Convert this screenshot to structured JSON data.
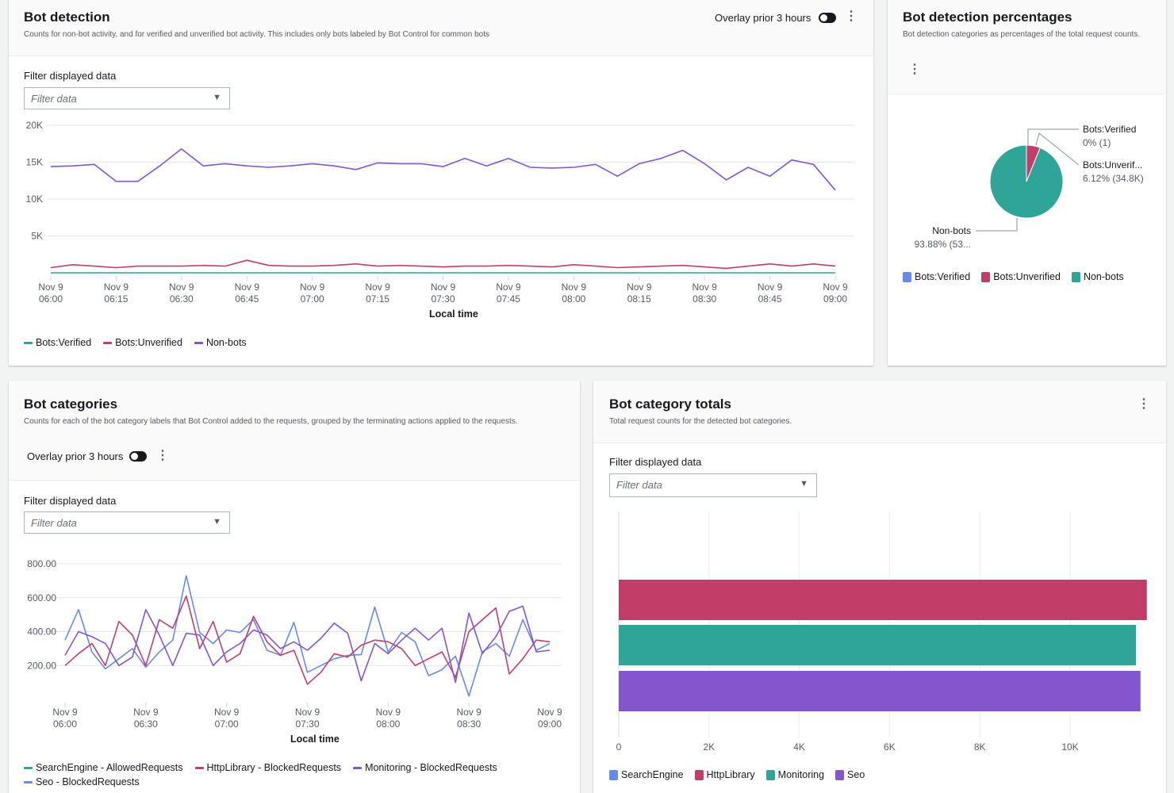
{
  "bot_detection": {
    "title": "Bot detection",
    "description": "Counts for non-bot activity, and for verified and unverified bot activity. This includes only bots labeled by Bot Control for common bots",
    "overlay_label": "Overlay prior 3 hours",
    "overlay_on": true,
    "filter_label": "Filter displayed data",
    "filter_placeholder": "Filter data",
    "x_label": "Local time",
    "legend": [
      "Bots:Verified",
      "Bots:Unverified",
      "Non-bots"
    ]
  },
  "bot_percentages": {
    "title": "Bot detection percentages",
    "description": "Bot detection categories as percentages of the total request counts.",
    "slice_labels": [
      {
        "name": "Bots:Verified",
        "value": "0% (1)"
      },
      {
        "name": "Bots:Unverif...",
        "value": "6.12% (34.8K)"
      },
      {
        "name": "Non-bots",
        "value": "93.88% (53..."
      }
    ],
    "legend": [
      "Bots:Verified",
      "Bots:Unverified",
      "Non-bots"
    ]
  },
  "bot_categories": {
    "title": "Bot categories",
    "description": "Counts for each of the bot category labels that Bot Control added to the requests, grouped by the terminating actions applied to the requests.",
    "overlay_label": "Overlay prior 3 hours",
    "overlay_on": true,
    "filter_label": "Filter displayed data",
    "filter_placeholder": "Filter data",
    "x_label": "Local time",
    "legend": [
      "SearchEngine - AllowedRequests",
      "HttpLibrary - BlockedRequests",
      "Monitoring - BlockedRequests",
      "Seo - BlockedRequests"
    ]
  },
  "bot_category_totals": {
    "title": "Bot category totals",
    "description": "Total request counts for the detected bot categories.",
    "filter_label": "Filter displayed data",
    "filter_placeholder": "Filter data",
    "legend": [
      "SearchEngine",
      "HttpLibrary",
      "Monitoring",
      "Seo"
    ]
  },
  "colors": {
    "blue": "#688ae8",
    "red": "#c33d69",
    "teal": "#2ea597",
    "purple": "#8456ce"
  },
  "chart_data": [
    {
      "type": "line",
      "x_ticks": [
        "Nov 9|06:00",
        "Nov 9|06:15",
        "Nov 9|06:30",
        "Nov 9|06:45",
        "Nov 9|07:00",
        "Nov 9|07:15",
        "Nov 9|07:30",
        "Nov 9|07:45",
        "Nov 9|08:00",
        "Nov 9|08:15",
        "Nov 9|08:30",
        "Nov 9|08:45",
        "Nov 9|09:00"
      ],
      "y_ticks": [
        "20K",
        "15K",
        "10K",
        "5K"
      ],
      "ylim": [
        0,
        20000
      ],
      "xlabel": "Local time",
      "x_interval_minutes": 5,
      "grid": true,
      "legend_position": "bottom-left",
      "series": [
        {
          "name": "Bots:Verified",
          "color": "#2ea597",
          "values": [
            0,
            0,
            0,
            0,
            0,
            0,
            0,
            0,
            0,
            0,
            0,
            0,
            0,
            0,
            0,
            0,
            0,
            0,
            0,
            0,
            0,
            0,
            0,
            0,
            0,
            0,
            0,
            0,
            0,
            0,
            0,
            0,
            0,
            0,
            0,
            0,
            0
          ]
        },
        {
          "name": "Bots:Unverified",
          "color": "#c33d69",
          "values": [
            700,
            1100,
            900,
            700,
            900,
            900,
            900,
            1000,
            900,
            1700,
            1000,
            900,
            900,
            1000,
            1200,
            900,
            1000,
            900,
            800,
            900,
            900,
            1000,
            900,
            800,
            1100,
            900,
            700,
            800,
            900,
            1000,
            800,
            600,
            900,
            1200,
            900,
            1200,
            900
          ]
        },
        {
          "name": "Non-bots",
          "color": "#8456ce",
          "values": [
            14400,
            14500,
            14700,
            12400,
            12400,
            14500,
            16800,
            14500,
            14800,
            14500,
            14300,
            14500,
            14800,
            14500,
            14000,
            14900,
            14800,
            14800,
            14400,
            15500,
            14500,
            15500,
            14300,
            14200,
            14300,
            14700,
            13100,
            14800,
            15500,
            16600,
            14800,
            12600,
            14300,
            13100,
            15300,
            14700,
            11200
          ]
        }
      ]
    },
    {
      "type": "pie",
      "slices": [
        {
          "name": "Bots:Verified",
          "percent": 0,
          "count": 1,
          "color": "#688ae8"
        },
        {
          "name": "Bots:Unverified",
          "percent": 6.12,
          "count": 34800,
          "color": "#c33d69"
        },
        {
          "name": "Non-bots",
          "percent": 93.88,
          "color": "#2ea597"
        }
      ],
      "legend_position": "bottom"
    },
    {
      "type": "line",
      "x_ticks": [
        "Nov 9|06:00",
        "Nov 9|06:30",
        "Nov 9|07:00",
        "Nov 9|07:30",
        "Nov 9|08:00",
        "Nov 9|08:30",
        "Nov 9|09:00"
      ],
      "y_ticks": [
        "800.00",
        "600.00",
        "400.00",
        "200.00"
      ],
      "ylim": [
        0,
        800
      ],
      "xlabel": "Local time",
      "x_interval_minutes": 5,
      "grid": true,
      "legend_position": "bottom-left",
      "series": [
        {
          "name": "Seo - BlockedRequests",
          "color": "#688ae8",
          "values": [
            350,
            530,
            280,
            180,
            240,
            300,
            190,
            280,
            350,
            730,
            395,
            330,
            410,
            395,
            470,
            290,
            260,
            455,
            160,
            200,
            240,
            260,
            265,
            545,
            280,
            395,
            340,
            140,
            175,
            255,
            20,
            280,
            330,
            255,
            470,
            290,
            330
          ]
        },
        {
          "name": "HttpLibrary - BlockedRequests",
          "color": "#c33d69",
          "values": [
            200,
            270,
            330,
            200,
            460,
            380,
            200,
            470,
            420,
            610,
            300,
            460,
            220,
            270,
            490,
            340,
            260,
            290,
            90,
            160,
            270,
            250,
            320,
            350,
            340,
            300,
            200,
            240,
            280,
            130,
            400,
            470,
            540,
            150,
            240,
            350,
            340
          ]
        },
        {
          "name": "Monitoring - BlockedRequests",
          "color": "#8456ce",
          "values": [
            260,
            400,
            370,
            330,
            200,
            250,
            530,
            380,
            200,
            390,
            380,
            200,
            280,
            330,
            410,
            380,
            300,
            340,
            290,
            360,
            450,
            390,
            110,
            330,
            270,
            350,
            420,
            350,
            420,
            100,
            510,
            270,
            370,
            520,
            550,
            280,
            290
          ]
        }
      ]
    },
    {
      "type": "bar",
      "orientation": "horizontal",
      "x_ticks": [
        "0",
        "2K",
        "4K",
        "6K",
        "8K",
        "10K"
      ],
      "xlim": [
        0,
        11800
      ],
      "grid": true,
      "legend_position": "bottom-left",
      "bars": [
        {
          "name": "HttpLibrary",
          "value": 11700,
          "color": "#c33d69"
        },
        {
          "name": "Monitoring",
          "value": 11460,
          "color": "#2ea597"
        },
        {
          "name": "Seo",
          "value": 11560,
          "color": "#8456ce"
        }
      ]
    }
  ]
}
